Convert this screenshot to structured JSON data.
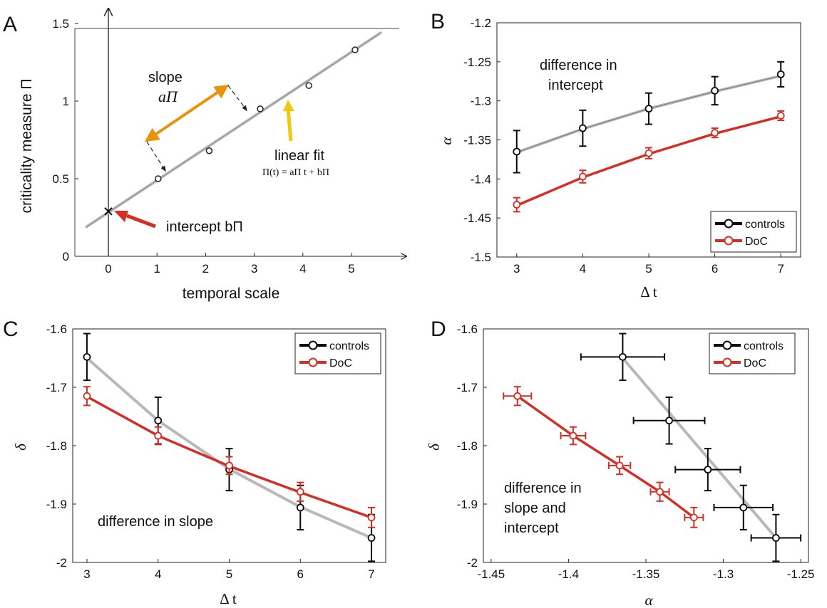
{
  "colors": {
    "controls": "#0a0a0a",
    "doc": "#d23024",
    "fit": "#b8b8b8",
    "orange": "#e8930a",
    "yellow": "#f0c810",
    "arrow_red": "#d23024"
  },
  "chart_data": [
    {
      "panel": "A",
      "type": "scatter",
      "xlabel": "temporal scale",
      "ylabel": "criticality measure Π",
      "x_ticks": [
        "0",
        "1",
        "2",
        "3",
        "4",
        "5"
      ],
      "y_ticks": [
        "0",
        "0.5",
        "1",
        "1.5"
      ],
      "xlim": [
        -0.6,
        5.9
      ],
      "ylim": [
        0,
        1.5
      ],
      "points": {
        "x": [
          0.95,
          2.0,
          3.05,
          4.05,
          5.0
        ],
        "y": [
          0.5,
          0.68,
          0.95,
          1.1,
          1.33
        ]
      },
      "fit_line": {
        "x": [
          -0.45,
          5.6
        ],
        "y": [
          0.19,
          1.44
        ]
      },
      "intercept_marker": {
        "x": 0,
        "y": 0.29
      },
      "annotations": {
        "slope_label": "slope",
        "slope_symbol": "aΠ",
        "linear_fit_label": "linear fit",
        "fit_equation": "Π(t) = aΠ t + bΠ",
        "intercept_label": "intercept bΠ"
      }
    },
    {
      "panel": "B",
      "type": "line",
      "xlabel": "Δ t",
      "ylabel": "α",
      "x_ticks": [
        "3",
        "4",
        "5",
        "6",
        "7"
      ],
      "y_ticks": [
        "-1.5",
        "-1.45",
        "-1.4",
        "-1.35",
        "-1.3",
        "-1.25",
        "-1.2"
      ],
      "xlim": [
        2.7,
        7.3
      ],
      "ylim": [
        -1.5,
        -1.2
      ],
      "x": [
        3,
        4,
        5,
        6,
        7
      ],
      "series": [
        {
          "name": "controls",
          "values": [
            -1.365,
            -1.335,
            -1.31,
            -1.287,
            -1.266
          ],
          "err": [
            0.027,
            0.023,
            0.02,
            0.018,
            0.016
          ],
          "fit": [
            -1.366,
            -1.336,
            -1.31,
            -1.288,
            -1.268
          ]
        },
        {
          "name": "DoC",
          "values": [
            -1.433,
            -1.397,
            -1.367,
            -1.341,
            -1.319
          ],
          "err": [
            0.009,
            0.008,
            0.007,
            0.006,
            0.006
          ],
          "fit": [
            -1.434,
            -1.398,
            -1.368,
            -1.342,
            -1.32
          ]
        }
      ],
      "legend": "bottom-right",
      "annotation": "difference in intercept"
    },
    {
      "panel": "C",
      "type": "line",
      "xlabel": "Δ t",
      "ylabel": "δ",
      "x_ticks": [
        "3",
        "4",
        "5",
        "6",
        "7"
      ],
      "y_ticks": [
        "-2",
        "-1.9",
        "-1.8",
        "-1.7",
        "-1.6"
      ],
      "xlim": [
        2.8,
        7.2
      ],
      "ylim": [
        -2.0,
        -1.6
      ],
      "x": [
        3,
        4,
        5,
        6,
        7
      ],
      "series": [
        {
          "name": "controls",
          "values": [
            -1.648,
            -1.757,
            -1.841,
            -1.906,
            -1.958
          ],
          "err": [
            0.04,
            0.04,
            0.036,
            0.038,
            0.04
          ],
          "fit": [
            -1.65,
            -1.757,
            -1.84,
            -1.905,
            -1.958
          ]
        },
        {
          "name": "DoC",
          "values": [
            -1.715,
            -1.783,
            -1.834,
            -1.879,
            -1.923
          ],
          "err": [
            0.016,
            0.015,
            0.015,
            0.016,
            0.017
          ],
          "fit": [
            -1.716,
            -1.783,
            -1.835,
            -1.88,
            -1.923
          ]
        }
      ],
      "legend": "top-right",
      "annotation": "difference in slope"
    },
    {
      "panel": "D",
      "type": "scatter",
      "xlabel": "α",
      "ylabel": "δ",
      "x_ticks": [
        "-1.45",
        "-1.4",
        "-1.35",
        "-1.3",
        "-1.25"
      ],
      "y_ticks": [
        "-2",
        "-1.9",
        "-1.8",
        "-1.7",
        "-1.6"
      ],
      "xlim": [
        -1.455,
        -1.245
      ],
      "ylim": [
        -2.0,
        -1.6
      ],
      "series": [
        {
          "name": "controls",
          "x": [
            -1.365,
            -1.335,
            -1.31,
            -1.287,
            -1.266
          ],
          "y": [
            -1.648,
            -1.757,
            -1.841,
            -1.906,
            -1.958
          ],
          "xerr": [
            0.027,
            0.023,
            0.021,
            0.019,
            0.016
          ],
          "yerr": [
            0.04,
            0.04,
            0.036,
            0.038,
            0.04
          ]
        },
        {
          "name": "DoC",
          "x": [
            -1.433,
            -1.397,
            -1.367,
            -1.341,
            -1.319
          ],
          "y": [
            -1.715,
            -1.783,
            -1.834,
            -1.879,
            -1.923
          ],
          "xerr": [
            0.009,
            0.008,
            0.007,
            0.006,
            0.006
          ],
          "yerr": [
            0.016,
            0.015,
            0.015,
            0.016,
            0.017
          ]
        }
      ],
      "fit_line_controls": {
        "x": [
          -1.365,
          -1.266
        ],
        "y": [
          -1.65,
          -1.958
        ]
      },
      "legend": "top-right",
      "annotation": [
        "difference in",
        "slope and",
        "intercept"
      ]
    }
  ]
}
